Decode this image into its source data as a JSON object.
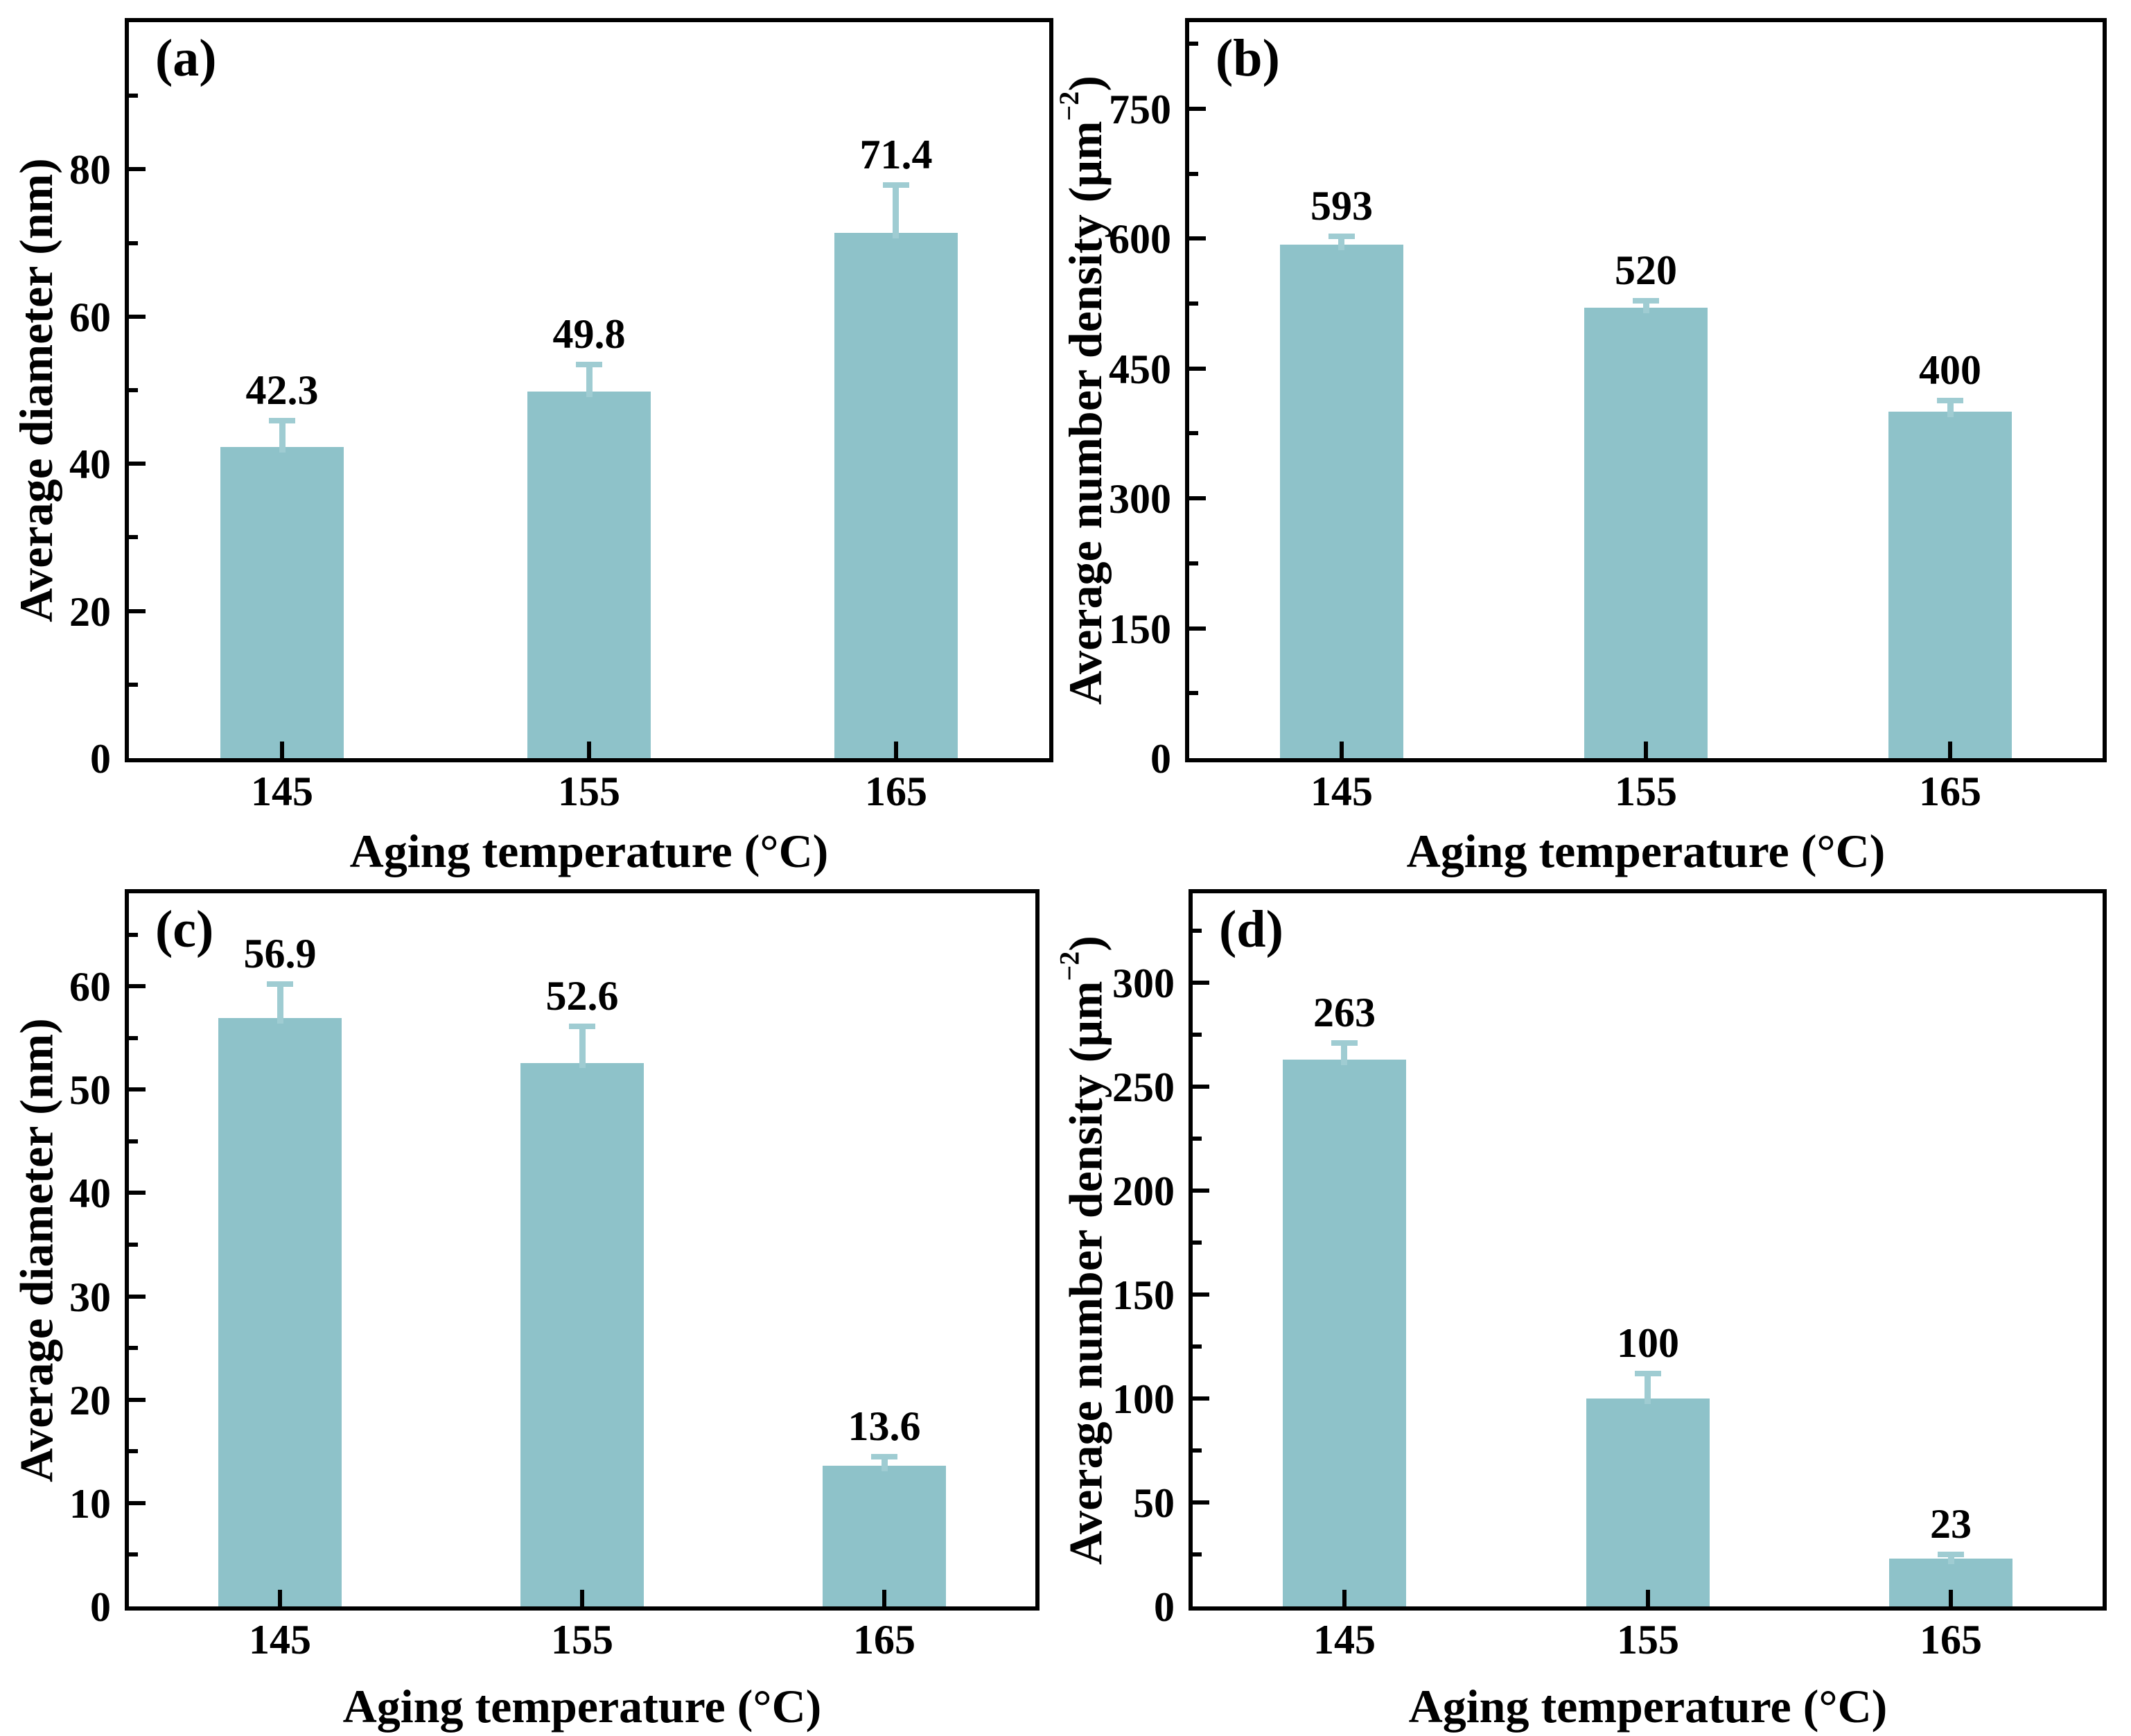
{
  "figure": {
    "background": "#ffffff",
    "axis_color": "#000000",
    "text_color": "#000000",
    "bar_color": "#8ec2c9",
    "error_bar_color": "#9fccd2",
    "grid": false,
    "legend": "none"
  },
  "chart_data": [
    {
      "panel_label": "(a)",
      "type": "bar",
      "title": "",
      "xlabel": "Aging temperature (°C)",
      "ylabel": "Average diameter (nm)",
      "ylabel_sup": "",
      "ylabel_suffix": "",
      "categories": [
        "145",
        "155",
        "165"
      ],
      "values": [
        42.3,
        49.8,
        71.4
      ],
      "value_labels": [
        "42.3",
        "49.8",
        "71.4"
      ],
      "errors_plus": [
        3.6,
        3.7,
        6.5
      ],
      "ylim": [
        0,
        100
      ],
      "yticks": [
        0,
        20,
        40,
        60,
        80
      ],
      "ytick_labels": [
        "0",
        "20",
        "40",
        "60",
        "80"
      ],
      "minor_tick_step": 10,
      "grid": false,
      "legend": "none"
    },
    {
      "panel_label": "(b)",
      "type": "bar",
      "title": "",
      "xlabel": "Aging temperature (°C)",
      "ylabel": "Average number density (μm",
      "ylabel_sup": "−2",
      "ylabel_suffix": ")",
      "categories": [
        "145",
        "155",
        "165"
      ],
      "values": [
        593,
        520,
        400
      ],
      "value_labels": [
        "593",
        "520",
        "400"
      ],
      "errors_plus": [
        10,
        8,
        13
      ],
      "ylim": [
        0,
        850
      ],
      "yticks": [
        0,
        150,
        300,
        450,
        600,
        750
      ],
      "ytick_labels": [
        "0",
        "150",
        "300",
        "450",
        "600",
        "750"
      ],
      "minor_tick_step": 75,
      "grid": false,
      "legend": "none"
    },
    {
      "panel_label": "(c)",
      "type": "bar",
      "title": "",
      "xlabel": "Aging temperature (°C)",
      "ylabel": "Average diameter (nm)",
      "ylabel_sup": "",
      "ylabel_suffix": "",
      "categories": [
        "145",
        "155",
        "165"
      ],
      "values": [
        56.9,
        52.6,
        13.6
      ],
      "value_labels": [
        "56.9",
        "52.6",
        "13.6"
      ],
      "errors_plus": [
        3.3,
        3.5,
        0.9
      ],
      "ylim": [
        0,
        69
      ],
      "yticks": [
        0,
        10,
        20,
        30,
        40,
        50,
        60
      ],
      "ytick_labels": [
        "0",
        "10",
        "20",
        "30",
        "40",
        "50",
        "60"
      ],
      "minor_tick_step": 5,
      "grid": false,
      "legend": "none"
    },
    {
      "panel_label": "(d)",
      "type": "bar",
      "title": "",
      "xlabel": "Aging temperature (°C)",
      "ylabel": "Average number density (μm",
      "ylabel_sup": "−2",
      "ylabel_suffix": ")",
      "categories": [
        "145",
        "155",
        "165"
      ],
      "values": [
        263,
        100,
        23
      ],
      "value_labels": [
        "263",
        "100",
        "23"
      ],
      "errors_plus": [
        8,
        12,
        2
      ],
      "ylim": [
        0,
        343
      ],
      "yticks": [
        0,
        50,
        100,
        150,
        200,
        250,
        300
      ],
      "ytick_labels": [
        "0",
        "50",
        "100",
        "150",
        "200",
        "250",
        "300"
      ],
      "minor_tick_step": 25,
      "grid": false,
      "legend": "none"
    }
  ]
}
